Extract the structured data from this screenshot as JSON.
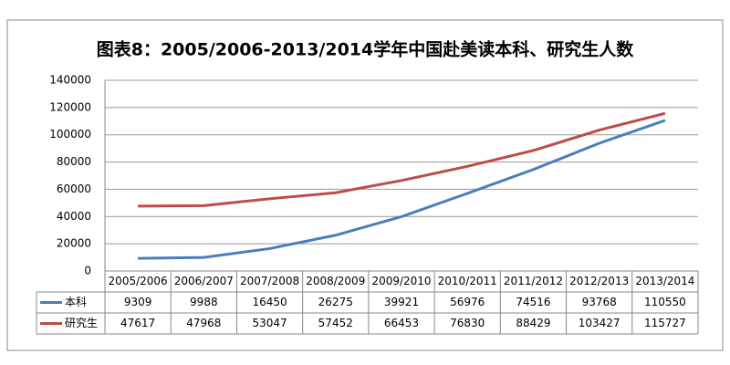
{
  "chart_data": {
    "type": "line",
    "title": "图表8：2005/2006-2013/2014学年中国赴美读本科、研究生人数",
    "categories": [
      "2005/2006",
      "2006/2007",
      "2007/2008",
      "2008/2009",
      "2009/2010",
      "2010/2011",
      "2011/2012",
      "2012/2013",
      "2013/2014"
    ],
    "series": [
      {
        "name": "本科",
        "color": "#4a7ebb",
        "values": [
          9309,
          9988,
          16450,
          26275,
          39921,
          56976,
          74516,
          93768,
          110550
        ]
      },
      {
        "name": "研究生",
        "color": "#be4b48",
        "values": [
          47617,
          47968,
          53047,
          57452,
          66453,
          76830,
          88429,
          103427,
          115727
        ]
      }
    ],
    "ylim": [
      0,
      140000
    ],
    "yticks": [
      0,
      20000,
      40000,
      60000,
      80000,
      100000,
      120000,
      140000
    ],
    "grid": true
  }
}
